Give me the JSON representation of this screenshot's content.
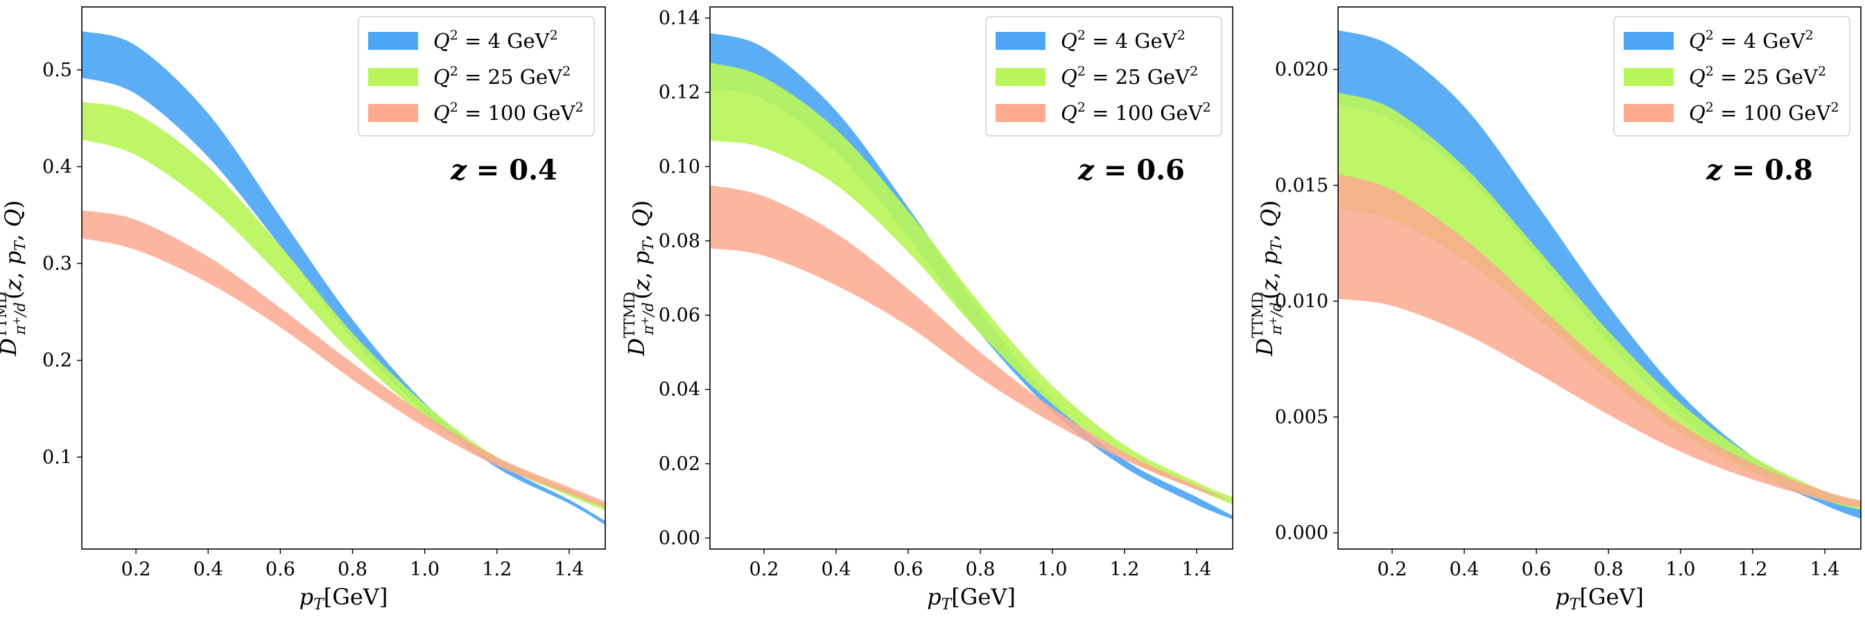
{
  "chart_data": [
    {
      "type": "area",
      "panel_label": "z = 0.4",
      "z_value": "0.4",
      "xlabel": "p_T[GeV]",
      "ylabel": "D^{TTMD}_{π+/d}(z, p_T, Q)",
      "xlim": [
        0.05,
        1.5
      ],
      "ylim": [
        0.005,
        0.565
      ],
      "xticks": [
        0.2,
        0.4,
        0.6,
        0.8,
        1.0,
        1.2,
        1.4
      ],
      "xtick_labels": [
        "0.2",
        "0.4",
        "0.6",
        "0.8",
        "1.0",
        "1.2",
        "1.4"
      ],
      "yticks": [
        0.1,
        0.2,
        0.3,
        0.4,
        0.5
      ],
      "ytick_labels": [
        "0.1",
        "0.2",
        "0.3",
        "0.4",
        "0.5"
      ],
      "legend_position": "top-right",
      "series": [
        {
          "name": "Q^2 = 4 GeV^2",
          "Q2": "4",
          "color": "#4da6f5",
          "x": [
            0.05,
            0.2,
            0.4,
            0.6,
            0.8,
            1.0,
            1.2,
            1.4,
            1.5
          ],
          "lower": [
            0.492,
            0.475,
            0.41,
            0.318,
            0.222,
            0.146,
            0.089,
            0.052,
            0.03
          ],
          "upper": [
            0.54,
            0.525,
            0.455,
            0.348,
            0.242,
            0.156,
            0.095,
            0.056,
            0.034
          ]
        },
        {
          "name": "Q^2 = 25 GeV^2",
          "Q2": "25",
          "color": "#b8f55a",
          "x": [
            0.05,
            0.2,
            0.4,
            0.6,
            0.8,
            1.0,
            1.2,
            1.4,
            1.5
          ],
          "lower": [
            0.428,
            0.412,
            0.36,
            0.287,
            0.207,
            0.142,
            0.093,
            0.06,
            0.045
          ],
          "upper": [
            0.467,
            0.455,
            0.4,
            0.318,
            0.228,
            0.155,
            0.1,
            0.066,
            0.05
          ]
        },
        {
          "name": "Q^2 = 100 GeV^2",
          "Q2": "100",
          "color": "#fca98e",
          "x": [
            0.05,
            0.2,
            0.4,
            0.6,
            0.8,
            1.0,
            1.2,
            1.4,
            1.5
          ],
          "lower": [
            0.326,
            0.314,
            0.28,
            0.234,
            0.18,
            0.131,
            0.091,
            0.062,
            0.048
          ],
          "upper": [
            0.355,
            0.345,
            0.307,
            0.254,
            0.197,
            0.144,
            0.1,
            0.069,
            0.054
          ]
        }
      ]
    },
    {
      "type": "area",
      "panel_label": "z = 0.6",
      "z_value": "0.6",
      "xlabel": "p_T[GeV]",
      "ylabel": "D^{TTMD}_{π+/d}(z, p_T, Q)",
      "xlim": [
        0.05,
        1.5
      ],
      "ylim": [
        -0.003,
        0.143
      ],
      "xticks": [
        0.2,
        0.4,
        0.6,
        0.8,
        1.0,
        1.2,
        1.4
      ],
      "xtick_labels": [
        "0.2",
        "0.4",
        "0.6",
        "0.8",
        "1.0",
        "1.2",
        "1.4"
      ],
      "yticks": [
        0.0,
        0.02,
        0.04,
        0.06,
        0.08,
        0.1,
        0.12,
        0.14
      ],
      "ytick_labels": [
        "0.00",
        "0.02",
        "0.04",
        "0.06",
        "0.08",
        "0.10",
        "0.12",
        "0.14"
      ],
      "legend_position": "top-right",
      "series": [
        {
          "name": "Q^2 = 4 GeV^2",
          "Q2": "4",
          "color": "#4da6f5",
          "x": [
            0.05,
            0.2,
            0.4,
            0.6,
            0.8,
            1.0,
            1.2,
            1.4,
            1.5
          ],
          "lower": [
            0.121,
            0.118,
            0.104,
            0.081,
            0.055,
            0.034,
            0.019,
            0.009,
            0.005
          ],
          "upper": [
            0.136,
            0.132,
            0.115,
            0.089,
            0.061,
            0.037,
            0.021,
            0.011,
            0.006
          ]
        },
        {
          "name": "Q^2 = 25 GeV^2",
          "Q2": "25",
          "color": "#b8f55a",
          "x": [
            0.05,
            0.2,
            0.4,
            0.6,
            0.8,
            1.0,
            1.2,
            1.4,
            1.5
          ],
          "lower": [
            0.107,
            0.105,
            0.095,
            0.077,
            0.055,
            0.036,
            0.022,
            0.013,
            0.009
          ],
          "upper": [
            0.128,
            0.124,
            0.11,
            0.088,
            0.063,
            0.041,
            0.025,
            0.015,
            0.011
          ]
        },
        {
          "name": "Q^2 = 100 GeV^2",
          "Q2": "100",
          "color": "#fca98e",
          "x": [
            0.05,
            0.2,
            0.4,
            0.6,
            0.8,
            1.0,
            1.2,
            1.4,
            1.5
          ],
          "lower": [
            0.078,
            0.076,
            0.068,
            0.057,
            0.043,
            0.031,
            0.021,
            0.013,
            0.01
          ],
          "upper": [
            0.095,
            0.092,
            0.082,
            0.067,
            0.05,
            0.035,
            0.023,
            0.014,
            0.01
          ]
        }
      ]
    },
    {
      "type": "area",
      "panel_label": "z = 0.8",
      "z_value": "0.8",
      "xlabel": "p_T[GeV]",
      "ylabel": "D^{TTMD}_{π+/d}(z, p_T, Q)",
      "xlim": [
        0.05,
        1.5
      ],
      "ylim": [
        -0.0007,
        0.0227
      ],
      "xticks": [
        0.2,
        0.4,
        0.6,
        0.8,
        1.0,
        1.2,
        1.4
      ],
      "xtick_labels": [
        "0.2",
        "0.4",
        "0.6",
        "0.8",
        "1.0",
        "1.2",
        "1.4"
      ],
      "yticks": [
        0.0,
        0.005,
        0.01,
        0.015,
        0.02
      ],
      "ytick_labels": [
        "0.000",
        "0.005",
        "0.010",
        "0.015",
        "0.020"
      ],
      "legend_position": "top-right",
      "series": [
        {
          "name": "Q^2 = 4 GeV^2",
          "Q2": "4",
          "color": "#4da6f5",
          "x": [
            0.05,
            0.2,
            0.4,
            0.6,
            0.8,
            1.0,
            1.2,
            1.4,
            1.5
          ],
          "lower": [
            0.0185,
            0.0178,
            0.0155,
            0.012,
            0.0082,
            0.005,
            0.0027,
            0.0012,
            0.0006
          ],
          "upper": [
            0.0217,
            0.021,
            0.0184,
            0.0142,
            0.0098,
            0.006,
            0.0033,
            0.0016,
            0.001
          ]
        },
        {
          "name": "Q^2 = 25 GeV^2",
          "Q2": "25",
          "color": "#b8f55a",
          "x": [
            0.05,
            0.2,
            0.4,
            0.6,
            0.8,
            1.0,
            1.2,
            1.4,
            1.5
          ],
          "lower": [
            0.014,
            0.0135,
            0.0118,
            0.0093,
            0.0066,
            0.0043,
            0.0026,
            0.0014,
            0.001
          ],
          "upper": [
            0.019,
            0.0183,
            0.0158,
            0.0123,
            0.0087,
            0.0056,
            0.0033,
            0.0018,
            0.0013
          ]
        },
        {
          "name": "Q^2 = 100 GeV^2",
          "Q2": "100",
          "color": "#fca98e",
          "x": [
            0.05,
            0.2,
            0.4,
            0.6,
            0.8,
            1.0,
            1.2,
            1.4,
            1.5
          ],
          "lower": [
            0.0101,
            0.0098,
            0.0086,
            0.0069,
            0.0051,
            0.0035,
            0.0023,
            0.0014,
            0.0011
          ],
          "upper": [
            0.0155,
            0.0148,
            0.0127,
            0.0099,
            0.0071,
            0.0047,
            0.003,
            0.0018,
            0.0014
          ]
        }
      ]
    }
  ]
}
